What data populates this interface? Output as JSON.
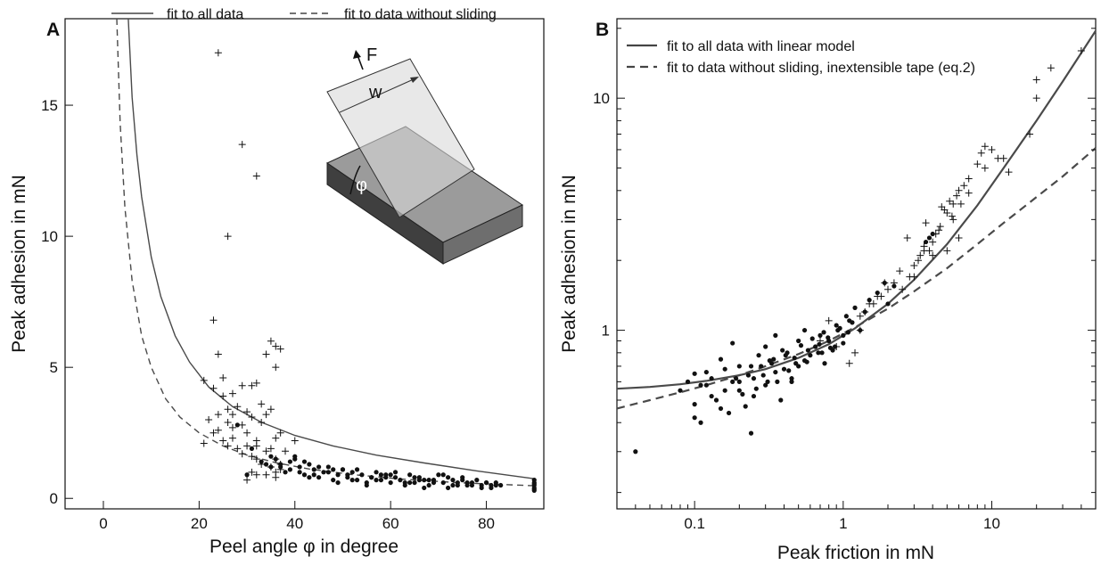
{
  "chart_data": [
    {
      "type": "scatter",
      "panel": "A",
      "xlabel": "Peel angle φ in degree",
      "ylabel": "Peak adhesion in mN",
      "xlim": [
        -8,
        92
      ],
      "ylim": [
        -0.4,
        18.3
      ],
      "xticks": [
        0,
        20,
        40,
        60,
        80
      ],
      "yticks": [
        0,
        5,
        10,
        15
      ],
      "legend": {
        "placement": "top",
        "entries": [
          "fit to all data",
          "fit to data without sliding"
        ]
      },
      "inset": {
        "labels": [
          "F",
          "w",
          "φ"
        ]
      },
      "series": [
        {
          "name": "fit to all data",
          "kind": "line",
          "style": "solid",
          "x": [
            5.2,
            6,
            7,
            8,
            10,
            12,
            15,
            18,
            22,
            27,
            33,
            40,
            48,
            57,
            67,
            78,
            90
          ],
          "y": [
            18.3,
            15.3,
            13.1,
            11.5,
            9.2,
            7.7,
            6.2,
            5.2,
            4.25,
            3.5,
            2.9,
            2.4,
            2.0,
            1.65,
            1.35,
            1.05,
            0.75
          ]
        },
        {
          "name": "fit to data without sliding",
          "kind": "line",
          "style": "dashed",
          "x": [
            2.8,
            3.5,
            4.5,
            6,
            8,
            10,
            13,
            16,
            20,
            25,
            30,
            36,
            43,
            52,
            62,
            74,
            90
          ],
          "y": [
            18.3,
            14.3,
            11.1,
            8.3,
            6.2,
            5.0,
            3.8,
            3.1,
            2.5,
            2.0,
            1.65,
            1.36,
            1.12,
            0.91,
            0.74,
            0.6,
            0.48
          ]
        },
        {
          "kind": "points",
          "marker": "plus",
          "x": [
            24,
            29,
            32,
            26,
            23,
            24,
            21,
            25,
            27,
            29,
            31,
            32,
            33,
            35,
            36,
            37,
            23,
            25,
            26,
            28,
            30,
            31,
            34,
            34,
            36,
            22,
            24,
            26,
            27,
            29,
            30,
            32,
            33,
            35,
            36,
            27,
            30,
            32,
            34,
            37,
            21,
            23,
            25,
            27,
            28,
            31,
            35,
            36,
            37,
            24,
            26,
            29,
            32,
            33,
            35,
            36,
            37,
            38,
            40,
            31,
            34,
            32,
            36,
            30
          ],
          "y": [
            17.0,
            13.5,
            12.3,
            10.0,
            6.8,
            5.5,
            4.5,
            4.6,
            4.0,
            4.3,
            4.3,
            4.4,
            3.6,
            6.0,
            5.8,
            5.7,
            4.2,
            3.9,
            3.4,
            3.5,
            3.3,
            3.1,
            3.2,
            5.5,
            5.0,
            3.0,
            3.2,
            2.9,
            3.2,
            2.8,
            2.5,
            2.2,
            2.9,
            3.4,
            2.3,
            2.7,
            2.0,
            2.0,
            1.8,
            2.5,
            2.1,
            2.5,
            2.2,
            2.3,
            1.9,
            1.6,
            1.9,
            1.5,
            1.3,
            2.6,
            2.0,
            1.7,
            1.5,
            1.3,
            1.2,
            1.0,
            1.1,
            1.8,
            2.2,
            1.0,
            0.9,
            0.9,
            0.8,
            0.7
          ]
        },
        {
          "kind": "points",
          "marker": "dot",
          "x": [
            28,
            31,
            33,
            35,
            36,
            37,
            38,
            39,
            40,
            41,
            42,
            43,
            44,
            45,
            46,
            47,
            48,
            49,
            50,
            51,
            52,
            53,
            54,
            55,
            56,
            57,
            58,
            59,
            60,
            61,
            62,
            63,
            64,
            65,
            66,
            67,
            68,
            69,
            70,
            71,
            72,
            73,
            74,
            75,
            76,
            77,
            78,
            79,
            80,
            81,
            82,
            83,
            39,
            41,
            43,
            45,
            47,
            49,
            51,
            53,
            55,
            57,
            59,
            61,
            63,
            65,
            67,
            69,
            71,
            73,
            75,
            77,
            79,
            81,
            34,
            37,
            40,
            44,
            48,
            52,
            56,
            60,
            64,
            68,
            72,
            76,
            80,
            30,
            35,
            42,
            50,
            58,
            66,
            74,
            82,
            90,
            90,
            90,
            90,
            90,
            90,
            90
          ],
          "y": [
            2.8,
            1.9,
            1.4,
            1.2,
            1.5,
            1.3,
            1.0,
            1.1,
            1.6,
            1.2,
            0.9,
            1.3,
            1.1,
            0.8,
            1.0,
            1.2,
            0.7,
            0.9,
            1.1,
            0.8,
            1.0,
            0.7,
            0.9,
            0.6,
            0.8,
            1.0,
            0.7,
            0.9,
            0.6,
            0.8,
            0.7,
            0.5,
            0.9,
            0.6,
            0.8,
            0.7,
            0.5,
            0.7,
            0.9,
            0.6,
            0.4,
            0.7,
            0.5,
            0.8,
            0.6,
            0.5,
            0.7,
            0.4,
            0.6,
            0.5,
            0.6,
            0.5,
            1.4,
            1.0,
            0.8,
            1.2,
            1.0,
            0.6,
            0.9,
            1.1,
            0.5,
            0.7,
            0.8,
            1.0,
            0.6,
            0.8,
            0.4,
            0.6,
            0.9,
            0.5,
            0.7,
            0.6,
            0.5,
            0.4,
            1.3,
            1.2,
            1.5,
            0.9,
            1.1,
            0.7,
            0.8,
            0.9,
            0.6,
            0.7,
            0.8,
            0.5,
            0.6,
            0.9,
            1.6,
            1.4,
            1.1,
            0.9,
            0.7,
            0.6,
            0.5,
            0.7,
            0.6,
            0.5,
            0.4,
            0.35,
            0.3,
            0.55
          ]
        }
      ]
    },
    {
      "type": "scatter",
      "panel": "B",
      "xlabel": "Peak friction in mN",
      "ylabel": "Peak adhesion in mN",
      "xscale": "log",
      "yscale": "log",
      "xlim": [
        0.03,
        50
      ],
      "ylim": [
        0.17,
        22
      ],
      "xticks": [
        0.1,
        1,
        10
      ],
      "xtick_labels": [
        "0.1",
        "1",
        "10"
      ],
      "yticks": [
        1,
        10
      ],
      "ytick_labels": [
        "1",
        "10"
      ],
      "legend": {
        "placement": "top-left",
        "entries": [
          "fit to all data with linear model",
          "fit to data without sliding, inextensible tape (eq.2)"
        ]
      },
      "series": [
        {
          "name": "fit to all data with linear model",
          "kind": "line",
          "style": "solid",
          "x": [
            0.03,
            0.05,
            0.08,
            0.12,
            0.2,
            0.3,
            0.5,
            0.8,
            1.2,
            2,
            3,
            5,
            8,
            12,
            20,
            30,
            50
          ],
          "y": [
            0.56,
            0.57,
            0.585,
            0.605,
            0.64,
            0.68,
            0.76,
            0.87,
            1.02,
            1.3,
            1.65,
            2.35,
            3.45,
            5.0,
            8.0,
            11.8,
            19.5
          ]
        },
        {
          "name": "fit to data without sliding, inextensible tape (eq.2)",
          "kind": "line",
          "style": "dashed",
          "x": [
            0.03,
            0.05,
            0.08,
            0.12,
            0.2,
            0.3,
            0.5,
            0.8,
            1.2,
            2,
            3,
            5,
            8,
            12,
            20,
            30,
            50
          ],
          "y": [
            0.46,
            0.5,
            0.54,
            0.58,
            0.64,
            0.7,
            0.79,
            0.9,
            1.03,
            1.24,
            1.47,
            1.85,
            2.35,
            2.9,
            3.75,
            4.6,
            6.1
          ]
        },
        {
          "kind": "points",
          "marker": "plus",
          "x": [
            40,
            25,
            20,
            20,
            18,
            12,
            10,
            9,
            8.5,
            8,
            7,
            6,
            5.5,
            5,
            5.5,
            4.8,
            4.2,
            4,
            3.8,
            3.5,
            3.2,
            3,
            2.8,
            6,
            5,
            4.5,
            4,
            3.5,
            3,
            2.5,
            2.2,
            2,
            1.8,
            1.6,
            1.4,
            1.3,
            6.5,
            5.8,
            5.2,
            4.6,
            3.6,
            2.7,
            1.9,
            1.5,
            1.2,
            1.1,
            0.9,
            0.8,
            0.7,
            7,
            6.2,
            5.4,
            4.4,
            3.3,
            2.4,
            1.7,
            1.3,
            13,
            11,
            9
          ],
          "y": [
            16,
            13.5,
            12,
            10,
            7,
            5.5,
            6,
            6.2,
            5.8,
            5.2,
            4.5,
            4,
            3.5,
            3.2,
            3.0,
            3.3,
            2.6,
            2.4,
            2.2,
            2.2,
            2.0,
            1.9,
            1.7,
            2.5,
            2.2,
            2.8,
            2.1,
            2.3,
            1.7,
            1.5,
            1.6,
            1.5,
            1.4,
            1.3,
            1.2,
            1.0,
            4.2,
            3.8,
            3.6,
            3.4,
            2.9,
            2.5,
            1.6,
            1.3,
            0.8,
            0.72,
            0.85,
            1.1,
            0.9,
            3.9,
            3.5,
            3.1,
            2.7,
            2.1,
            1.8,
            1.4,
            1.15,
            4.8,
            5.5,
            5.0
          ]
        },
        {
          "kind": "points",
          "marker": "dot",
          "x": [
            0.04,
            0.08,
            0.09,
            0.1,
            0.1,
            0.11,
            0.12,
            0.13,
            0.15,
            0.16,
            0.18,
            0.2,
            0.2,
            0.22,
            0.25,
            0.27,
            0.3,
            0.3,
            0.33,
            0.35,
            0.38,
            0.4,
            0.42,
            0.45,
            0.5,
            0.5,
            0.55,
            0.6,
            0.65,
            0.7,
            0.75,
            0.8,
            0.85,
            0.9,
            1.0,
            1.0,
            1.1,
            1.2,
            1.3,
            1.4,
            1.5,
            1.7,
            1.9,
            2.0,
            2.2,
            0.1,
            0.12,
            0.14,
            0.17,
            0.19,
            0.21,
            0.24,
            0.26,
            0.29,
            0.32,
            0.36,
            0.39,
            0.43,
            0.47,
            0.52,
            0.57,
            0.62,
            0.68,
            0.74,
            0.82,
            0.92,
            1.05,
            1.15,
            0.11,
            0.13,
            0.16,
            0.18,
            0.23,
            0.28,
            0.34,
            0.41,
            0.48,
            0.58,
            0.69,
            0.79,
            0.95,
            1.08,
            0.15,
            0.2,
            0.25,
            0.35,
            0.45,
            0.55,
            0.72,
            0.88,
            0.24,
            0.31,
            4,
            3.8,
            3.6
          ],
          "y": [
            0.3,
            0.55,
            0.6,
            0.42,
            0.48,
            0.4,
            0.66,
            0.52,
            0.75,
            0.55,
            0.88,
            0.6,
            0.7,
            0.47,
            0.62,
            0.78,
            0.58,
            0.85,
            0.72,
            0.95,
            0.5,
            0.68,
            0.8,
            0.62,
            0.9,
            0.7,
            1.0,
            0.78,
            0.85,
            0.95,
            0.72,
            0.9,
            0.82,
            1.05,
            0.95,
            0.88,
            1.1,
            1.25,
            1.0,
            1.2,
            1.35,
            1.45,
            1.6,
            1.3,
            1.55,
            0.65,
            0.58,
            0.5,
            0.44,
            0.62,
            0.53,
            0.7,
            0.56,
            0.64,
            0.74,
            0.6,
            0.82,
            0.67,
            0.76,
            0.86,
            0.73,
            0.92,
            0.8,
            0.98,
            0.84,
            1.0,
            1.15,
            1.08,
            0.58,
            0.62,
            0.68,
            0.6,
            0.64,
            0.7,
            0.75,
            0.78,
            0.72,
            0.82,
            0.87,
            0.93,
            1.02,
            0.98,
            0.46,
            0.55,
            0.52,
            0.66,
            0.6,
            0.74,
            0.8,
            0.85,
            0.36,
            0.6,
            2.6,
            2.5,
            2.4
          ]
        }
      ]
    }
  ]
}
